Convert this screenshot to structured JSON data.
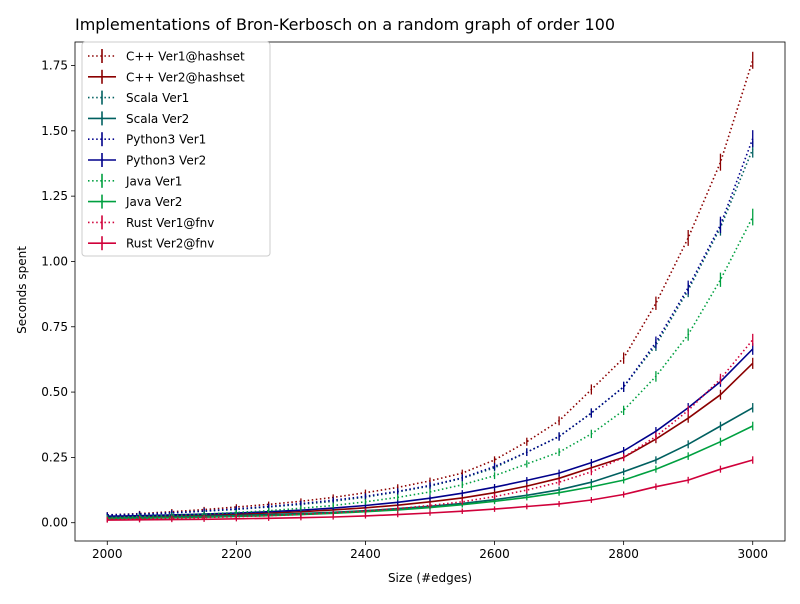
{
  "chart_data": {
    "type": "line",
    "title": "Implementations of Bron-Kerbosch on a random graph of order 100",
    "xlabel": "Size (#edges)",
    "ylabel": "Seconds spent",
    "xlim": [
      1950,
      3050
    ],
    "ylim": [
      -0.07,
      1.84
    ],
    "xticks": [
      2000,
      2200,
      2400,
      2600,
      2800,
      3000
    ],
    "xtick_labels": [
      "2000",
      "2200",
      "2400",
      "2600",
      "2800",
      "3000"
    ],
    "yticks": [
      0.0,
      0.25,
      0.5,
      0.75,
      1.0,
      1.25,
      1.5,
      1.75
    ],
    "ytick_labels": [
      "0.00",
      "0.25",
      "0.50",
      "0.75",
      "1.00",
      "1.25",
      "1.50",
      "1.75"
    ],
    "grid": false,
    "legend_position": "upper-left",
    "x": [
      2000,
      2050,
      2100,
      2150,
      2200,
      2250,
      2300,
      2350,
      2400,
      2450,
      2500,
      2550,
      2600,
      2650,
      2700,
      2750,
      2800,
      2850,
      2900,
      2950,
      3000
    ],
    "series": [
      {
        "name": "C++ Ver1@hashset",
        "color": "#8b0000",
        "style": "dotted",
        "values": [
          0.03,
          0.035,
          0.042,
          0.05,
          0.06,
          0.07,
          0.082,
          0.097,
          0.115,
          0.135,
          0.16,
          0.19,
          0.24,
          0.31,
          0.39,
          0.51,
          0.63,
          0.84,
          1.09,
          1.38,
          1.77
        ]
      },
      {
        "name": "C++ Ver2@hashset",
        "color": "#8b0000",
        "style": "solid",
        "values": [
          0.02,
          0.022,
          0.025,
          0.028,
          0.032,
          0.037,
          0.042,
          0.049,
          0.057,
          0.067,
          0.08,
          0.095,
          0.115,
          0.14,
          0.17,
          0.21,
          0.25,
          0.32,
          0.4,
          0.49,
          0.61
        ]
      },
      {
        "name": "Scala Ver1",
        "color": "#006060",
        "style": "dotted",
        "values": [
          0.028,
          0.032,
          0.037,
          0.044,
          0.051,
          0.06,
          0.07,
          0.082,
          0.098,
          0.118,
          0.14,
          0.17,
          0.21,
          0.27,
          0.33,
          0.42,
          0.52,
          0.68,
          0.89,
          1.13,
          1.43
        ]
      },
      {
        "name": "Scala Ver2",
        "color": "#006060",
        "style": "solid",
        "values": [
          0.018,
          0.02,
          0.022,
          0.025,
          0.028,
          0.031,
          0.035,
          0.04,
          0.046,
          0.054,
          0.063,
          0.074,
          0.088,
          0.105,
          0.126,
          0.155,
          0.195,
          0.24,
          0.3,
          0.37,
          0.44
        ]
      },
      {
        "name": "Python3 Ver1",
        "color": "#00008b",
        "style": "dotted",
        "values": [
          0.03,
          0.033,
          0.038,
          0.045,
          0.053,
          0.062,
          0.073,
          0.086,
          0.101,
          0.12,
          0.143,
          0.172,
          0.215,
          0.27,
          0.33,
          0.42,
          0.52,
          0.69,
          0.9,
          1.14,
          1.47
        ]
      },
      {
        "name": "Python3 Ver2",
        "color": "#00008b",
        "style": "solid",
        "values": [
          0.025,
          0.027,
          0.03,
          0.033,
          0.037,
          0.042,
          0.048,
          0.056,
          0.066,
          0.078,
          0.094,
          0.113,
          0.136,
          0.162,
          0.19,
          0.23,
          0.275,
          0.35,
          0.44,
          0.54,
          0.665
        ]
      },
      {
        "name": "Java Ver1",
        "color": "#00a040",
        "style": "dotted",
        "values": [
          0.02,
          0.024,
          0.028,
          0.033,
          0.039,
          0.046,
          0.055,
          0.066,
          0.08,
          0.097,
          0.118,
          0.145,
          0.18,
          0.225,
          0.27,
          0.34,
          0.43,
          0.56,
          0.72,
          0.93,
          1.17
        ]
      },
      {
        "name": "Java Ver2",
        "color": "#00a040",
        "style": "solid",
        "values": [
          0.015,
          0.017,
          0.019,
          0.021,
          0.024,
          0.027,
          0.031,
          0.036,
          0.042,
          0.049,
          0.058,
          0.069,
          0.082,
          0.097,
          0.115,
          0.137,
          0.163,
          0.205,
          0.255,
          0.31,
          0.37
        ]
      },
      {
        "name": "Rust Ver1@fnv",
        "color": "#d0003a",
        "style": "dotted",
        "values": [
          0.013,
          0.015,
          0.017,
          0.02,
          0.023,
          0.027,
          0.032,
          0.038,
          0.045,
          0.054,
          0.066,
          0.08,
          0.1,
          0.125,
          0.155,
          0.195,
          0.25,
          0.33,
          0.43,
          0.55,
          0.7
        ]
      },
      {
        "name": "Rust Ver2@fnv",
        "color": "#d0003a",
        "style": "solid",
        "values": [
          0.01,
          0.011,
          0.012,
          0.013,
          0.015,
          0.017,
          0.019,
          0.022,
          0.026,
          0.031,
          0.037,
          0.044,
          0.052,
          0.062,
          0.072,
          0.087,
          0.108,
          0.138,
          0.163,
          0.205,
          0.24
        ]
      }
    ]
  }
}
